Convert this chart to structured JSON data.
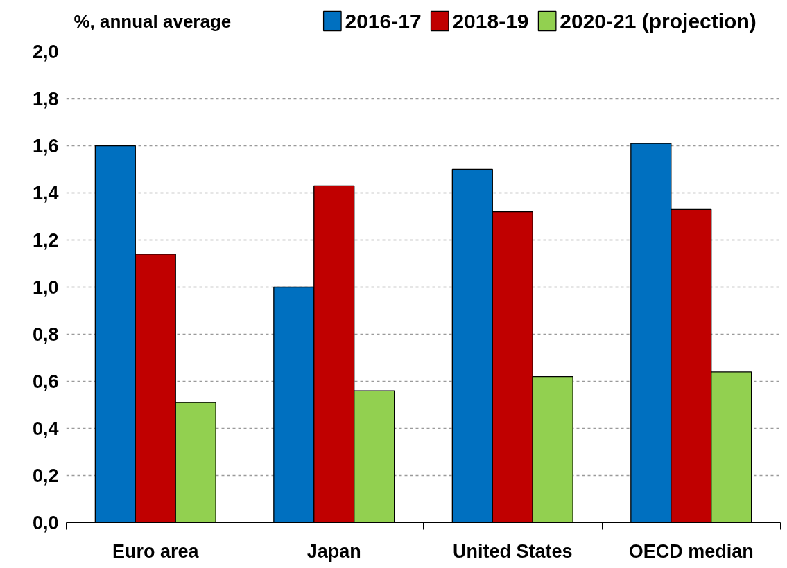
{
  "chart_data": {
    "type": "bar",
    "ylabel": "%, annual average",
    "categories": [
      "Euro area",
      "Japan",
      "United States",
      "OECD median"
    ],
    "series": [
      {
        "name": "2016-17",
        "color": "#0070c0",
        "values": [
          1.6,
          1.0,
          1.5,
          1.61
        ]
      },
      {
        "name": "2018-19",
        "color": "#c00000",
        "values": [
          1.14,
          1.43,
          1.32,
          1.33
        ]
      },
      {
        "name": "2020-21 (projection)",
        "color": "#92d050",
        "values": [
          0.51,
          0.56,
          0.62,
          0.64
        ]
      }
    ],
    "ylim": [
      0,
      2.0
    ],
    "yticks": [
      {
        "value": 0,
        "label": "0,0"
      },
      {
        "value": 0.2,
        "label": "0,2"
      },
      {
        "value": 0.4,
        "label": "0,4"
      },
      {
        "value": 0.6,
        "label": "0,6"
      },
      {
        "value": 0.8,
        "label": "0,8"
      },
      {
        "value": 1.0,
        "label": "1,0"
      },
      {
        "value": 1.2,
        "label": "1,2"
      },
      {
        "value": 1.4,
        "label": "1,4"
      },
      {
        "value": 1.6,
        "label": "1,6"
      },
      {
        "value": 1.8,
        "label": "1,8"
      },
      {
        "value": 2.0,
        "label": "2,0"
      }
    ],
    "grid": "y",
    "legend": "top right"
  }
}
